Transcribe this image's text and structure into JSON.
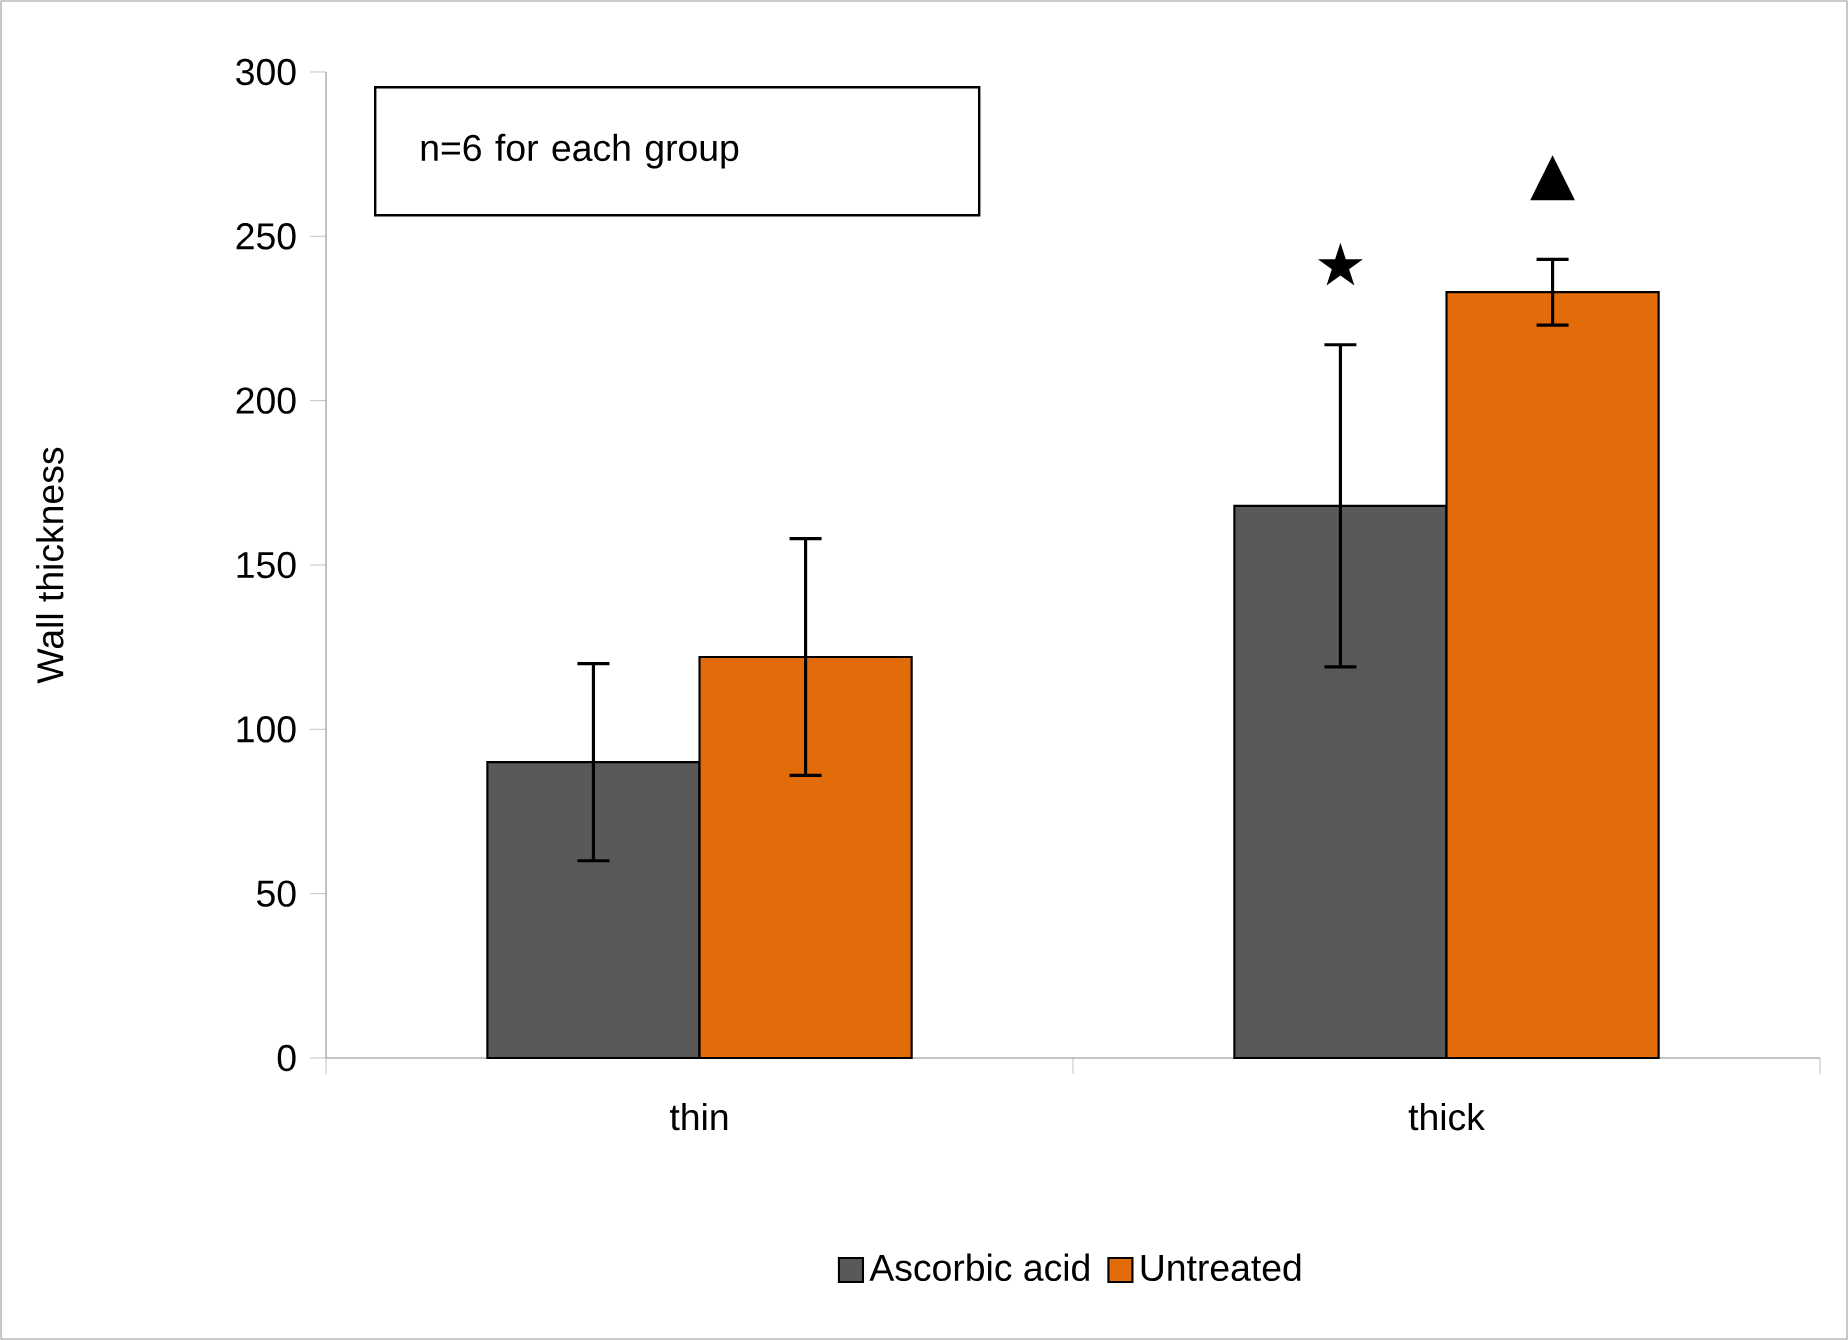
{
  "chart_data": {
    "type": "bar",
    "ylabel": "Wall thickness",
    "categories": [
      "thin",
      "thick"
    ],
    "series": [
      {
        "name": "Ascorbic acid",
        "color": "#595959",
        "values": [
          90,
          168
        ],
        "errors": [
          30,
          49
        ]
      },
      {
        "name": "Untreated",
        "color": "#e36c0a",
        "values": [
          122,
          233
        ],
        "errors": [
          36,
          10
        ]
      }
    ],
    "ylim": [
      0,
      300
    ],
    "yticks": [
      0,
      50,
      100,
      150,
      200,
      250,
      300
    ],
    "legend": "bottom",
    "annotations": [
      "n=6 for each group",
      "★",
      "▲"
    ]
  }
}
